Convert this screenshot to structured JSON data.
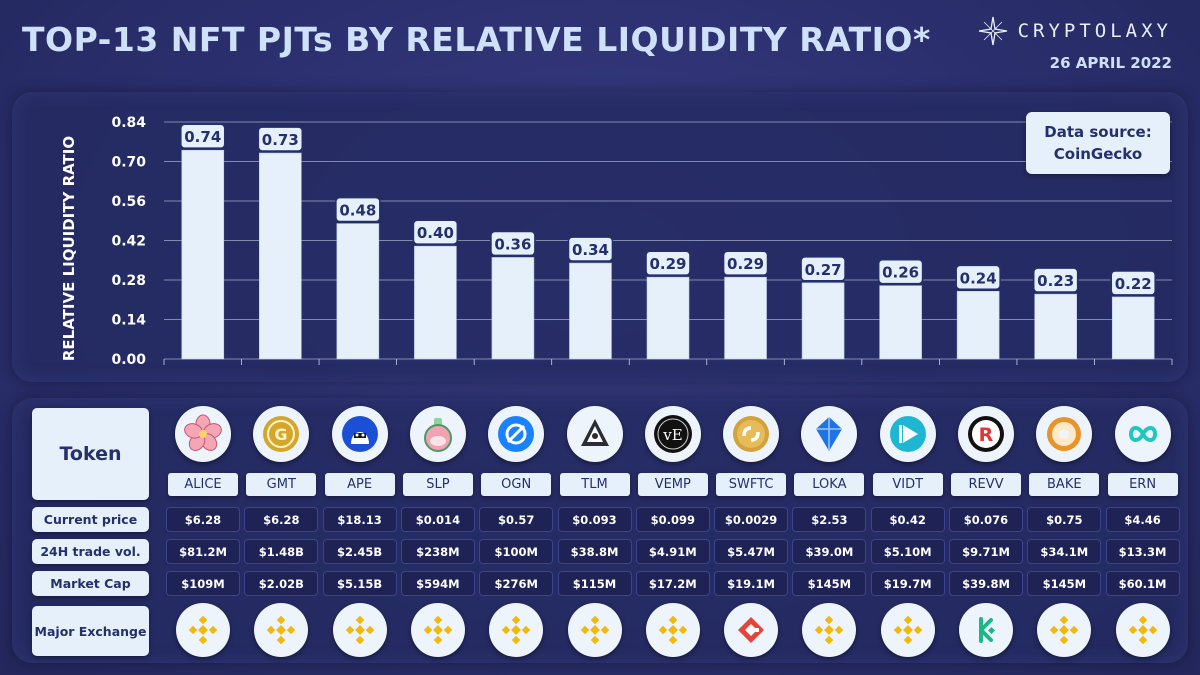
{
  "header": {
    "title": "TOP-13 NFT PJTs BY RELATIVE LIQUIDITY RATIO*",
    "brand": "CRYPTOLAXY",
    "date": "26 APRIL 2022"
  },
  "source": {
    "line1": "Data source:",
    "line2": "CoinGecko"
  },
  "chart_data": {
    "type": "bar",
    "title": "TOP-13 NFT PJTs BY RELATIVE LIQUIDITY RATIO*",
    "xlabel": "",
    "ylabel": "RELATIVE LIQUIDITY RATIO",
    "ylim": [
      0,
      0.84
    ],
    "yticks": [
      "0.00",
      "0.14",
      "0.28",
      "0.42",
      "0.56",
      "0.70",
      "0.84"
    ],
    "categories": [
      "ALICE",
      "GMT",
      "APE",
      "SLP",
      "OGN",
      "TLM",
      "VEMP",
      "SWFTC",
      "LOKA",
      "VIDT",
      "REVV",
      "BAKE",
      "ERN"
    ],
    "values": [
      0.74,
      0.73,
      0.48,
      0.4,
      0.36,
      0.34,
      0.29,
      0.29,
      0.27,
      0.26,
      0.24,
      0.23,
      0.22
    ],
    "labels": [
      "0.74",
      "0.73",
      "0.48",
      "0.40",
      "0.36",
      "0.34",
      "0.29",
      "0.29",
      "0.27",
      "0.26",
      "0.24",
      "0.23",
      "0.22"
    ],
    "bar_color": "#e6f0fb",
    "grid": true
  },
  "table": {
    "row_labels": {
      "token": "Token",
      "price": "Current price",
      "volume": "24H trade vol.",
      "mcap": "Market Cap",
      "exchange": "Major Exchange"
    },
    "tokens": [
      {
        "symbol": "ALICE",
        "price": "$6.28",
        "volume": "$81.2M",
        "mcap": "$109M",
        "icon": "alice-flower-icon",
        "color": "#f4a6b6",
        "exchange": "binance"
      },
      {
        "symbol": "GMT",
        "price": "$6.28",
        "volume": "$1.48B",
        "mcap": "$2.02B",
        "icon": "gmt-coin-icon",
        "color": "#d4a72c",
        "exchange": "binance"
      },
      {
        "symbol": "APE",
        "price": "$18.13",
        "volume": "$2.45B",
        "mcap": "$5.15B",
        "icon": "ape-icon",
        "color": "#1a4fd6",
        "exchange": "binance"
      },
      {
        "symbol": "SLP",
        "price": "$0.014",
        "volume": "$238M",
        "mcap": "$594M",
        "icon": "slp-potion-icon",
        "color": "#f2a3b3",
        "exchange": "binance"
      },
      {
        "symbol": "OGN",
        "price": "$0.57",
        "volume": "$100M",
        "mcap": "$276M",
        "icon": "ogn-icon",
        "color": "#1a82ff",
        "exchange": "binance"
      },
      {
        "symbol": "TLM",
        "price": "$0.093",
        "volume": "$38.8M",
        "mcap": "$115M",
        "icon": "tlm-icon",
        "color": "#5a5a66",
        "exchange": "binance"
      },
      {
        "symbol": "VEMP",
        "price": "$0.099",
        "volume": "$4.91M",
        "mcap": "$17.2M",
        "icon": "vemp-icon",
        "color": "#111111",
        "exchange": "binance"
      },
      {
        "symbol": "SWFTC",
        "price": "$0.0029",
        "volume": "$5.47M",
        "mcap": "$19.1M",
        "icon": "swftc-icon",
        "color": "#d4a23a",
        "exchange": "gate"
      },
      {
        "symbol": "LOKA",
        "price": "$2.53",
        "volume": "$39.0M",
        "mcap": "$145M",
        "icon": "loka-icon",
        "color": "#1e74e6",
        "exchange": "binance"
      },
      {
        "symbol": "VIDT",
        "price": "$0.42",
        "volume": "$5.10M",
        "mcap": "$19.7M",
        "icon": "vidt-icon",
        "color": "#1fb6d4",
        "exchange": "binance"
      },
      {
        "symbol": "REVV",
        "price": "$0.076",
        "volume": "$9.71M",
        "mcap": "$39.8M",
        "icon": "revv-icon",
        "color": "#e23434",
        "exchange": "kucoin"
      },
      {
        "symbol": "BAKE",
        "price": "$0.75",
        "volume": "$34.1M",
        "mcap": "$145M",
        "icon": "bake-donut-icon",
        "color": "#e8942a",
        "exchange": "binance"
      },
      {
        "symbol": "ERN",
        "price": "$4.46",
        "volume": "$13.3M",
        "mcap": "$60.1M",
        "icon": "ern-icon",
        "color": "#1ec8c0",
        "exchange": "binance"
      }
    ]
  }
}
